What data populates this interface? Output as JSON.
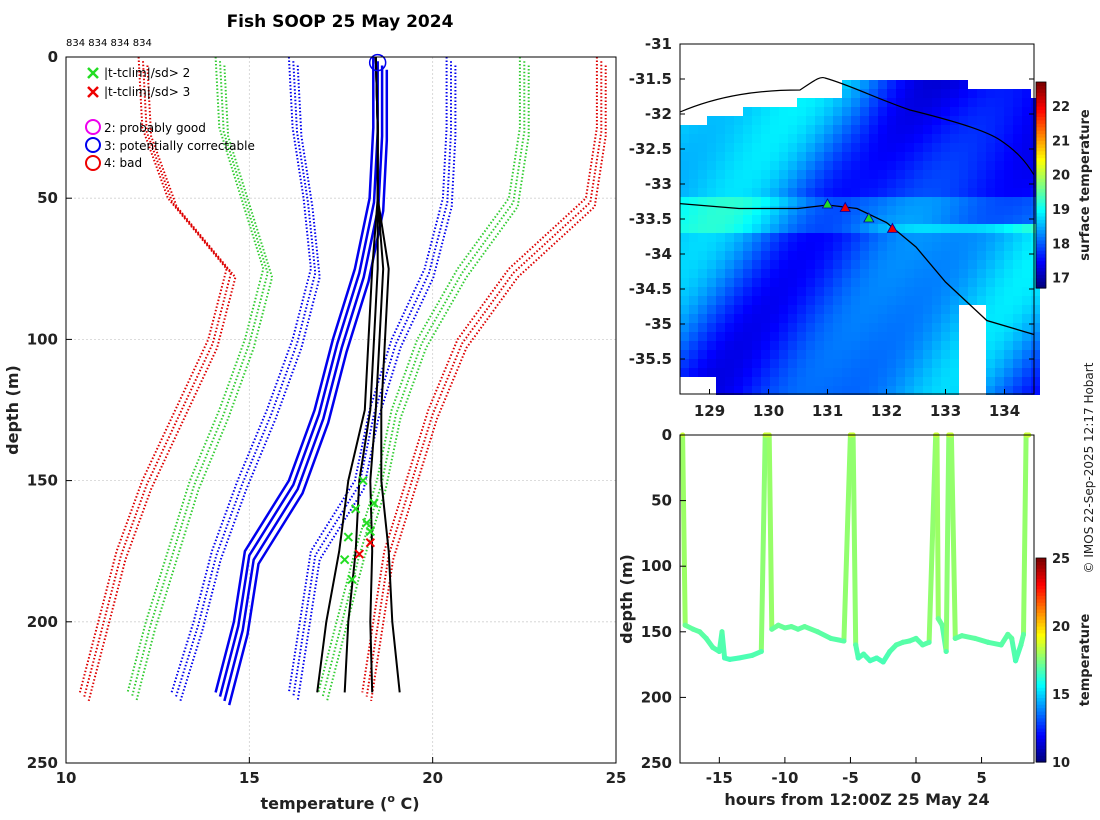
{
  "chart_data": [
    {
      "type": "line",
      "title": "Fish SOOP 25 May 2024",
      "xlabel": "temperature (",
      "xlabel_sup": "o",
      "xlabel_tail": " C)",
      "ylabel": "depth (m)",
      "xlim": [
        10,
        25
      ],
      "ylim": [
        250,
        0
      ],
      "xticks": [
        "10",
        "15",
        "20",
        "25"
      ],
      "yticks": [
        "0",
        "50",
        "100",
        "150",
        "200",
        "250"
      ],
      "profile_ids": "834 834 834 834",
      "legend": [
        {
          "marker": "x",
          "color": "#22dd22",
          "label": "|t-tclim|/sd> 2"
        },
        {
          "marker": "x",
          "color": "#ee0000",
          "label": "|t-tclim|/sd> 3"
        },
        {
          "marker": "o",
          "color": "#ee00ee",
          "label": "2: probably good"
        },
        {
          "marker": "o",
          "color": "#0000ee",
          "label": "3: potentially correctable"
        },
        {
          "marker": "o",
          "color": "#ee0000",
          "label": "4: bad"
        }
      ],
      "climatology_depths": [
        0,
        25,
        50,
        75,
        100,
        125,
        150,
        175,
        200,
        225
      ],
      "series": [
        {
          "name": "clim -3sd",
          "color": "#dd0000",
          "style": "dotted",
          "values": [
            12.1,
            12.2,
            12.9,
            14.5,
            14.0,
            13.1,
            12.2,
            11.5,
            11.0,
            10.5
          ]
        },
        {
          "name": "clim -2sd",
          "color": "#33cc33",
          "style": "dotted",
          "values": [
            14.2,
            14.3,
            14.9,
            15.5,
            15.0,
            14.3,
            13.5,
            12.9,
            12.3,
            11.8
          ]
        },
        {
          "name": "clim -1sd",
          "color": "#0000ee",
          "style": "dotted",
          "values": [
            16.2,
            16.3,
            16.6,
            16.8,
            16.3,
            15.6,
            14.8,
            14.1,
            13.6,
            13.0
          ]
        },
        {
          "name": "clim mean",
          "color": "#0000ee",
          "style": "solid",
          "values": [
            18.5,
            18.5,
            18.4,
            18.0,
            17.4,
            16.9,
            16.2,
            15.0,
            14.7,
            14.2
          ]
        },
        {
          "name": "clim +1sd",
          "color": "#0000ee",
          "style": "dotted",
          "values": [
            20.5,
            20.5,
            20.4,
            19.9,
            19.0,
            18.4,
            18.0,
            16.8,
            16.5,
            16.2
          ]
        },
        {
          "name": "clim +2sd",
          "color": "#33cc33",
          "style": "dotted",
          "values": [
            22.5,
            22.5,
            22.2,
            20.8,
            19.7,
            19.0,
            18.6,
            18.0,
            17.5,
            17.0
          ]
        },
        {
          "name": "clim +3sd",
          "color": "#dd0000",
          "style": "dotted",
          "values": [
            24.6,
            24.6,
            24.3,
            22.2,
            20.8,
            20.0,
            19.4,
            18.8,
            18.5,
            18.2
          ]
        },
        {
          "name": "observed profiles",
          "color": "#000000",
          "style": "solid",
          "values": [
            18.45,
            18.5,
            18.5,
            18.5,
            18.4,
            18.3,
            18.0,
            17.9,
            17.7,
            17.6
          ]
        }
      ],
      "flagged_green_x": [
        [
          18.1,
          150
        ],
        [
          17.9,
          160
        ],
        [
          18.2,
          165
        ],
        [
          17.7,
          170
        ],
        [
          18.3,
          168
        ],
        [
          17.6,
          178
        ],
        [
          17.8,
          185
        ],
        [
          18.4,
          158
        ]
      ],
      "flagged_red_x": [
        [
          18.3,
          172
        ],
        [
          18.0,
          176
        ]
      ],
      "surface_marker": [
        18.5,
        2
      ]
    },
    {
      "type": "heatmap",
      "title": "",
      "xlim": [
        128.5,
        134.5
      ],
      "ylim": [
        -36,
        -31
      ],
      "xticks": [
        "129",
        "130",
        "131",
        "132",
        "133",
        "134"
      ],
      "yticks": [
        "-31",
        "-31.5",
        "-32",
        "-32.5",
        "-33",
        "-33.5",
        "-34",
        "-34.5",
        "-35",
        "-35.5"
      ],
      "colorbar_label": "surface temperature",
      "colorbar_ticks": [
        "17",
        "18",
        "19",
        "20",
        "21",
        "22"
      ],
      "colorbar_range": [
        16.7,
        22.7
      ],
      "track": [
        [
          128.5,
          -33.28
        ],
        [
          129.5,
          -33.35
        ],
        [
          130.5,
          -33.35
        ],
        [
          131.0,
          -33.3
        ],
        [
          131.5,
          -33.35
        ],
        [
          132.0,
          -33.55
        ],
        [
          132.5,
          -33.9
        ],
        [
          133.0,
          -34.4
        ],
        [
          133.7,
          -34.95
        ],
        [
          134.5,
          -35.15
        ]
      ],
      "drops": [
        [
          131.0,
          -33.3
        ],
        [
          131.3,
          -33.35
        ],
        [
          131.7,
          -33.5
        ],
        [
          132.1,
          -33.65
        ]
      ]
    },
    {
      "type": "scatter",
      "xlabel": "hours from 12:00Z 25 May 24",
      "ylabel": "depth (m)",
      "xlim": [
        -18,
        9
      ],
      "ylim": [
        250,
        0
      ],
      "xticks": [
        "-15",
        "-10",
        "-5",
        "0",
        "5"
      ],
      "yticks": [
        "0",
        "50",
        "100",
        "150",
        "200",
        "250"
      ],
      "colorbar_label": "temperature",
      "colorbar_ticks": [
        "10",
        "15",
        "20",
        "25"
      ],
      "colorbar_range": [
        10,
        25
      ],
      "x": [
        -17.8,
        -17.6,
        -17.0,
        -16.5,
        -16.0,
        -15.5,
        -15.0,
        -14.8,
        -14.6,
        -14.2,
        -13.5,
        -12.5,
        -11.8,
        -11.5,
        -11.4,
        -11.2,
        -11.0,
        -10.5,
        -10.0,
        -9.5,
        -9.0,
        -8.5,
        -7.5,
        -6.5,
        -5.5,
        -5.0,
        -4.8,
        -4.6,
        -4.4,
        -4.0,
        -3.5,
        -3.0,
        -2.5,
        -2.0,
        -1.5,
        -1.0,
        -0.5,
        0.0,
        0.5,
        1.0,
        1.5,
        1.6,
        1.7,
        2.0,
        2.3,
        2.5,
        2.7,
        3.0,
        3.5,
        4.5,
        5.5,
        6.5,
        7.0,
        7.3,
        7.6,
        8.0,
        8.2,
        8.4,
        8.6
      ],
      "y": [
        0,
        145,
        148,
        150,
        155,
        162,
        165,
        150,
        170,
        171,
        170,
        168,
        165,
        0,
        0,
        0,
        148,
        145,
        147,
        146,
        148,
        146,
        150,
        155,
        157,
        0,
        0,
        160,
        170,
        167,
        172,
        170,
        173,
        165,
        160,
        158,
        157,
        155,
        160,
        158,
        0,
        0,
        140,
        145,
        165,
        0,
        0,
        155,
        153,
        155,
        158,
        160,
        152,
        155,
        172,
        160,
        152,
        0,
        0
      ],
      "temps": [
        18.6,
        17.2,
        17.0,
        17.0,
        16.9,
        16.9,
        16.8,
        16.9,
        16.7,
        16.7,
        16.7,
        16.8,
        16.8,
        18.6,
        18.6,
        18.6,
        17.1,
        17.2,
        17.1,
        17.1,
        17.0,
        17.1,
        17.0,
        16.9,
        16.9,
        18.6,
        18.6,
        16.9,
        16.7,
        16.8,
        16.7,
        16.7,
        16.7,
        16.8,
        16.9,
        16.9,
        16.9,
        16.9,
        16.9,
        16.9,
        18.6,
        18.6,
        17.2,
        17.1,
        16.8,
        18.6,
        18.6,
        17.0,
        17.0,
        17.0,
        16.9,
        16.9,
        17.0,
        17.0,
        16.7,
        16.9,
        17.0,
        18.6,
        18.6
      ]
    }
  ],
  "credit": "© IMOS 22-Sep-2025 12:17 Hobart"
}
